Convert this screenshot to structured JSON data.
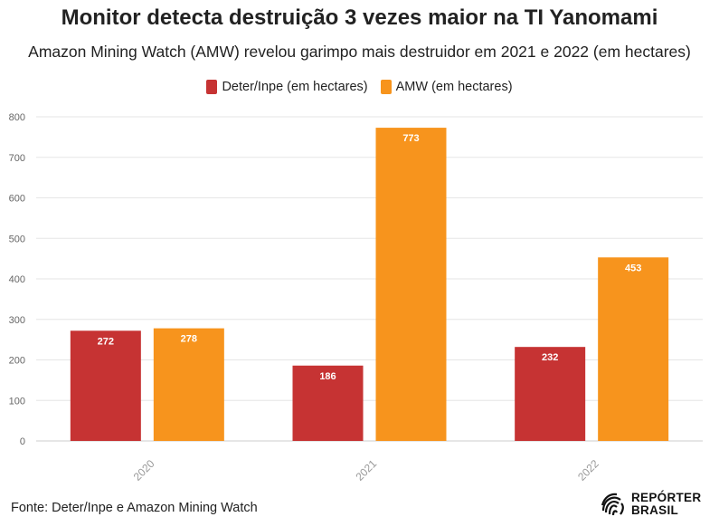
{
  "title": "Monitor detecta destruição 3 vezes maior na TI Yanomami",
  "subtitle": "Amazon Mining Watch (AMW) revelou garimpo mais destruidor em 2021 e 2022 (em hectares)",
  "source": "Fonte: Deter/Inpe e Amazon Mining Watch",
  "logo": {
    "line1": "REPÓRTER",
    "line2": "BRASIL"
  },
  "colors": {
    "deter": "#c63333",
    "amw": "#f7941d"
  },
  "chart_data": {
    "type": "bar",
    "title": "Monitor detecta destruição 3 vezes maior na TI Yanomami",
    "subtitle": "Amazon Mining Watch (AMW) revelou garimpo mais destruidor em 2021 e 2022 (em hectares)",
    "categories": [
      "2020",
      "2021",
      "2022"
    ],
    "series": [
      {
        "name": "Deter/Inpe (em hectares)",
        "values": [
          272,
          186,
          232
        ]
      },
      {
        "name": "AMW (em hectares)",
        "values": [
          278,
          773,
          453
        ]
      }
    ],
    "yticks": [
      "0",
      "100",
      "200",
      "300",
      "400",
      "500",
      "600",
      "700",
      "800"
    ],
    "ylim": [
      0,
      800
    ],
    "xlabel": "",
    "ylabel": "",
    "grid": true,
    "legend": "top-center"
  }
}
